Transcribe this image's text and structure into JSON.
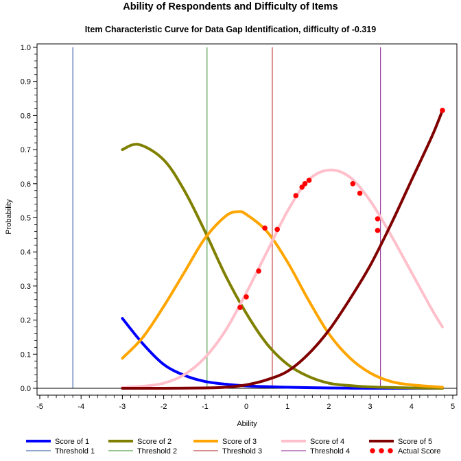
{
  "chart_data": {
    "type": "line",
    "title": "Ability of Respondents and Difficulty of Items",
    "subtitle": "Item Characteristic Curve for Data Gap Identification, difficulty of -0.319",
    "xlabel": "Ability",
    "ylabel": "Probability",
    "xlim": [
      -5,
      5
    ],
    "ylim": [
      0,
      1
    ],
    "x_ticks": [
      "-5",
      "-4",
      "-3",
      "-2",
      "-1",
      "0",
      "1",
      "2",
      "3",
      "4",
      "5"
    ],
    "y_ticks": [
      "0.0",
      "0.1",
      "0.2",
      "0.3",
      "0.4",
      "0.5",
      "0.6",
      "0.7",
      "0.8",
      "0.9",
      "1.0"
    ],
    "curve_x_range": [
      -3,
      4.75
    ],
    "series": [
      {
        "name": "Score of 1",
        "color": "#0000ff",
        "x": [
          -3,
          -2.5,
          -2,
          -1.5,
          -1,
          -0.5,
          0,
          1,
          2,
          3,
          4,
          4.75
        ],
        "values": [
          0.205,
          0.13,
          0.07,
          0.038,
          0.02,
          0.012,
          0.007,
          0.003,
          0.001,
          0,
          0,
          0
        ]
      },
      {
        "name": "Score of 2",
        "color": "#808000",
        "x": [
          -3,
          -2.6,
          -2,
          -1.5,
          -1,
          -0.5,
          0,
          0.5,
          1,
          1.5,
          2,
          2.5,
          3,
          4,
          4.75
        ],
        "values": [
          0.7,
          0.715,
          0.67,
          0.58,
          0.46,
          0.33,
          0.22,
          0.13,
          0.07,
          0.035,
          0.015,
          0.008,
          0.004,
          0.001,
          0
        ]
      },
      {
        "name": "Score of 3",
        "color": "#ffa500",
        "x": [
          -3,
          -2.5,
          -2,
          -1.5,
          -1,
          -0.5,
          -0.2,
          0,
          0.5,
          1,
          1.5,
          2,
          2.5,
          3,
          3.5,
          4,
          4.75
        ],
        "values": [
          0.088,
          0.15,
          0.24,
          0.34,
          0.44,
          0.505,
          0.518,
          0.51,
          0.46,
          0.37,
          0.26,
          0.16,
          0.09,
          0.045,
          0.02,
          0.01,
          0.003
        ]
      },
      {
        "name": "Score of 4",
        "color": "#ffc0cb",
        "x": [
          -3,
          -2.5,
          -2,
          -1.5,
          -1,
          -0.5,
          0,
          0.5,
          1,
          1.5,
          2,
          2.5,
          3,
          3.5,
          4,
          4.5,
          4.75
        ],
        "values": [
          0.002,
          0.006,
          0.015,
          0.04,
          0.09,
          0.17,
          0.28,
          0.4,
          0.52,
          0.61,
          0.64,
          0.62,
          0.55,
          0.45,
          0.34,
          0.23,
          0.18
        ]
      },
      {
        "name": "Score of 5",
        "color": "#800000",
        "x": [
          -3,
          -2,
          -1,
          -0.5,
          0,
          0.5,
          1,
          1.5,
          2,
          2.5,
          3,
          3.5,
          4,
          4.5,
          4.75
        ],
        "values": [
          0,
          0,
          0.001,
          0.003,
          0.01,
          0.025,
          0.05,
          0.1,
          0.17,
          0.26,
          0.36,
          0.48,
          0.61,
          0.74,
          0.815
        ]
      }
    ],
    "thresholds": [
      {
        "name": "Threshold 1",
        "x": -4.2,
        "color": "#1f4e9c"
      },
      {
        "name": "Threshold 2",
        "x": -0.95,
        "color": "#2e8b22"
      },
      {
        "name": "Threshold 3",
        "x": 0.63,
        "color": "#b22222"
      },
      {
        "name": "Threshold 4",
        "x": 3.25,
        "color": "#8b1a8b"
      }
    ],
    "actual_scores": {
      "name": "Actual Score",
      "color": "#ff0000",
      "points": [
        [
          -0.15,
          0.237
        ],
        [
          0,
          0.268
        ],
        [
          0.3,
          0.344
        ],
        [
          0.45,
          0.47
        ],
        [
          0.75,
          0.466
        ],
        [
          1.2,
          0.565
        ],
        [
          1.35,
          0.59
        ],
        [
          1.42,
          0.6
        ],
        [
          1.52,
          0.61
        ],
        [
          2.58,
          0.6
        ],
        [
          2.75,
          0.572
        ],
        [
          3.18,
          0.497
        ],
        [
          3.18,
          0.463
        ],
        [
          4.75,
          0.815
        ]
      ]
    },
    "grid": false,
    "legend_position": "bottom"
  }
}
